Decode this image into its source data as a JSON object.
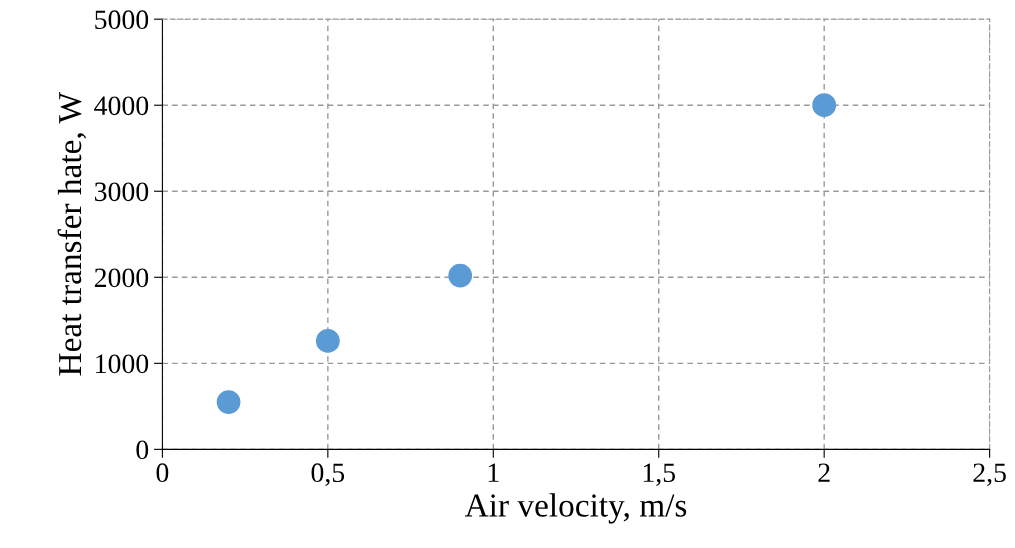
{
  "chart_data": {
    "type": "scatter",
    "xlabel": "Air velocity, m/s",
    "ylabel": "Heat transfer hate, W",
    "x": [
      0.2,
      0.5,
      0.9,
      2
    ],
    "series": [
      {
        "color": "#5b9bd5",
        "values": [
          550,
          1260,
          2020,
          4000
        ]
      }
    ],
    "xlim": [
      0,
      2.5
    ],
    "xticks": [
      0,
      {
        "value": 0.5,
        "label": "0,5"
      },
      1,
      {
        "value": 1.5,
        "label": "1,5"
      },
      2,
      {
        "value": 2.5,
        "label": "2,5"
      }
    ],
    "ylim": [
      0,
      5000
    ],
    "yticks": [
      0,
      1000,
      2000,
      3000,
      4000,
      5000
    ],
    "grid": true,
    "marker": "circle"
  }
}
